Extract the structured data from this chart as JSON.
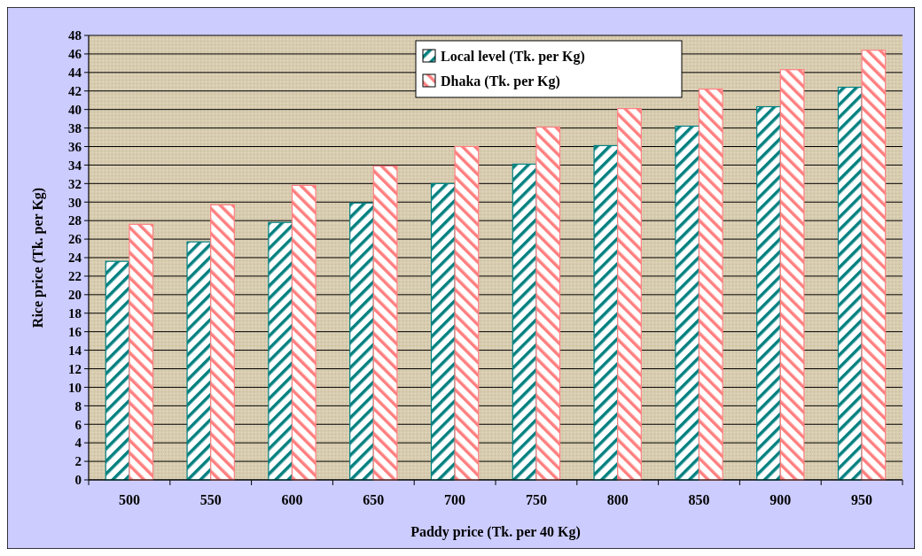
{
  "chart_data": {
    "type": "bar",
    "xlabel": "Paddy price (Tk. per 40 Kg)",
    "ylabel": "Rice price (Tk. per Kg)",
    "categories": [
      "500",
      "550",
      "600",
      "650",
      "700",
      "750",
      "800",
      "850",
      "900",
      "950"
    ],
    "series": [
      {
        "name": "Local level (Tk. per Kg)",
        "color": "#008080",
        "values": [
          23.6,
          25.7,
          27.8,
          29.9,
          32,
          34.1,
          36.1,
          38.2,
          40.3,
          42.4
        ]
      },
      {
        "name": "Dhaka (Tk. per Kg)",
        "color": "#ff7f7f",
        "values": [
          27.6,
          29.7,
          31.8,
          33.9,
          36,
          38.1,
          40.1,
          42.2,
          44.3,
          46.4
        ]
      }
    ],
    "ylim": [
      0,
      48
    ],
    "yticks": [
      0,
      2,
      4,
      6,
      8,
      10,
      12,
      14,
      16,
      18,
      20,
      22,
      24,
      26,
      28,
      30,
      32,
      34,
      36,
      38,
      40,
      42,
      44,
      46,
      48
    ],
    "grid": "y",
    "legend": "top"
  }
}
